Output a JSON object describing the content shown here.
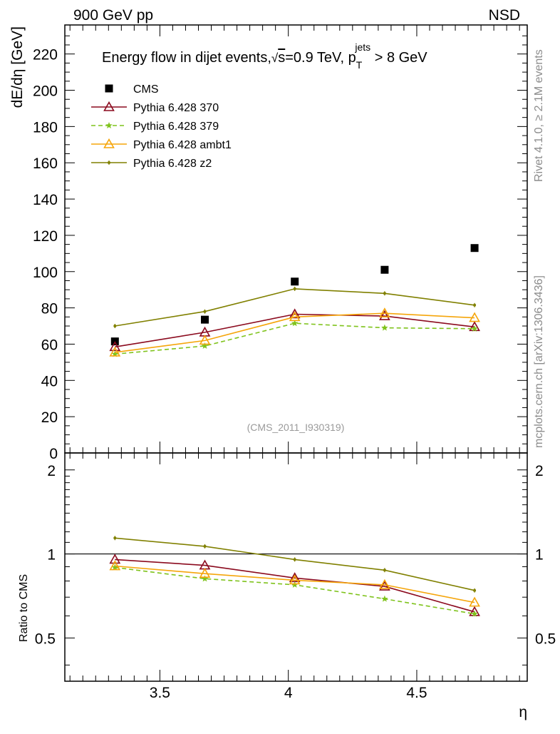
{
  "header": {
    "left": "900 GeV pp",
    "right": "NSD"
  },
  "side_labels": {
    "top": "Rivet 4.1.0, ≥ 2.1M events",
    "bottom": "mcplots.cern.ch [arXiv:1306.3436]"
  },
  "watermark": "(CMS_2011_I930319)",
  "chart_data": [
    {
      "type": "line",
      "panel": "main",
      "title_parts": {
        "lead": "Energy flow in dijet events,",
        "sqrt": "√",
        "s_var": "s",
        "mid": "=0.9 TeV, p",
        "sup": "jets",
        "sub": "T",
        "tail": " > 8 GeV"
      },
      "ylabel": "dE/dη [GeV]",
      "xlabel": "η",
      "xlim": [
        3.13,
        4.93
      ],
      "ylim": [
        0,
        236
      ],
      "yticks": [
        0,
        20,
        40,
        60,
        80,
        100,
        120,
        140,
        160,
        180,
        200,
        220
      ],
      "ytick_labels": [
        "0",
        "20",
        "40",
        "60",
        "80",
        "100",
        "120",
        "140",
        "160",
        "180",
        "200",
        "220"
      ],
      "x": [
        3.325,
        3.675,
        4.025,
        4.375,
        4.725
      ],
      "series": [
        {
          "name": "CMS",
          "legend": "CMS",
          "values": [
            61.5,
            73.5,
            94.5,
            101.0,
            113.0
          ],
          "color": "#000000",
          "marker": "square",
          "dash": ""
        },
        {
          "name": "p370",
          "legend": "Pythia 6.428 370",
          "values": [
            58.5,
            66.5,
            76.5,
            75.5,
            69.5
          ],
          "color": "#8b0a1e",
          "marker": "triangle",
          "dash": ""
        },
        {
          "name": "p379",
          "legend": "Pythia 6.428 379",
          "values": [
            54.5,
            59.0,
            71.5,
            69.0,
            68.5
          ],
          "color": "#7fc31c",
          "marker": "star",
          "dash": "6,4"
        },
        {
          "name": "ambt1",
          "legend": "Pythia 6.428 ambt1",
          "values": [
            55.5,
            62.0,
            75.0,
            77.0,
            74.5
          ],
          "color": "#f5a50a",
          "marker": "triangle",
          "dash": ""
        },
        {
          "name": "z2",
          "legend": "Pythia 6.428 z2",
          "values": [
            70.0,
            78.0,
            90.5,
            88.0,
            81.5
          ],
          "color": "#808000",
          "marker": "dot",
          "dash": ""
        }
      ]
    },
    {
      "type": "line",
      "panel": "ratio",
      "ylabel": "Ratio to CMS",
      "xlabel": "η",
      "xlim": [
        3.13,
        4.93
      ],
      "ylim": [
        0.35,
        2.3
      ],
      "yscale": "log",
      "yticks": [
        0.5,
        1,
        2
      ],
      "ytick_labels": [
        "0.5",
        "1",
        "2"
      ],
      "xticks": [
        3.5,
        4,
        4.5
      ],
      "xtick_labels": [
        "3.5",
        "4",
        "4.5"
      ],
      "reference": 1,
      "x": [
        3.325,
        3.675,
        4.025,
        4.375,
        4.725
      ],
      "series": [
        {
          "name": "p370",
          "values": [
            0.955,
            0.91,
            0.82,
            0.765,
            0.62
          ],
          "color": "#8b0a1e",
          "marker": "triangle",
          "dash": ""
        },
        {
          "name": "p379",
          "values": [
            0.895,
            0.815,
            0.775,
            0.69,
            0.61
          ],
          "color": "#7fc31c",
          "marker": "star",
          "dash": "6,4"
        },
        {
          "name": "ambt1",
          "values": [
            0.905,
            0.85,
            0.805,
            0.775,
            0.67
          ],
          "color": "#f5a50a",
          "marker": "triangle",
          "dash": ""
        },
        {
          "name": "z2",
          "values": [
            1.14,
            1.065,
            0.955,
            0.875,
            0.74
          ],
          "color": "#808000",
          "marker": "dot",
          "dash": ""
        }
      ]
    }
  ]
}
